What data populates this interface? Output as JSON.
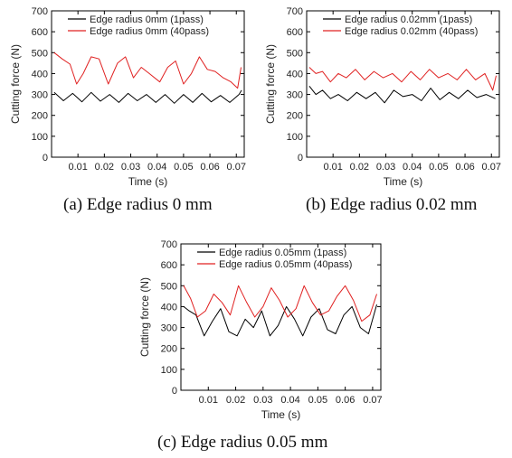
{
  "chart_data": [
    {
      "type": "line",
      "caption": "(a) Edge radius 0 mm",
      "xlabel": "Time (s)",
      "ylabel": "Cutting force (N)",
      "xlim": [
        0,
        0.073
      ],
      "ylim": [
        0,
        700
      ],
      "xticks": [
        "0.01",
        "0.02",
        "0.03",
        "0.04",
        "0.05",
        "0.06",
        "0.07"
      ],
      "yticks": [
        "0",
        "100",
        "200",
        "300",
        "400",
        "500",
        "600",
        "700"
      ],
      "legend_position": "top",
      "series": [
        {
          "name": "Edge radius 0mm (1pass)",
          "color": "#000000",
          "x": [
            0.001,
            0.0045,
            0.008,
            0.0115,
            0.015,
            0.0185,
            0.022,
            0.0255,
            0.029,
            0.0325,
            0.036,
            0.0395,
            0.043,
            0.0465,
            0.05,
            0.0535,
            0.057,
            0.0605,
            0.064,
            0.0675,
            0.071,
            0.072
          ],
          "y": [
            310,
            270,
            305,
            265,
            310,
            268,
            300,
            262,
            305,
            270,
            300,
            262,
            300,
            258,
            300,
            262,
            305,
            265,
            295,
            262,
            300,
            320
          ]
        },
        {
          "name": "Edge radius 0mm (40pass)",
          "color": "#e02020",
          "x": [
            0.001,
            0.004,
            0.007,
            0.0095,
            0.012,
            0.015,
            0.018,
            0.0215,
            0.025,
            0.028,
            0.031,
            0.034,
            0.037,
            0.041,
            0.044,
            0.047,
            0.05,
            0.053,
            0.056,
            0.059,
            0.062,
            0.065,
            0.068,
            0.0705,
            0.0718
          ],
          "y": [
            500,
            470,
            445,
            350,
            400,
            480,
            470,
            350,
            450,
            480,
            380,
            430,
            400,
            360,
            430,
            460,
            350,
            400,
            480,
            420,
            410,
            380,
            360,
            330,
            430
          ]
        }
      ]
    },
    {
      "type": "line",
      "caption": "(b) Edge radius 0.02 mm",
      "xlabel": "Time (s)",
      "ylabel": "Cutting force (N)",
      "xlim": [
        0,
        0.073
      ],
      "ylim": [
        0,
        700
      ],
      "xticks": [
        "0.01",
        "0.02",
        "0.03",
        "0.04",
        "0.05",
        "0.06",
        "0.07"
      ],
      "yticks": [
        "0",
        "100",
        "200",
        "300",
        "400",
        "500",
        "600",
        "700"
      ],
      "legend_position": "top",
      "series": [
        {
          "name": "Edge radius 0.02mm (1pass)",
          "color": "#000000",
          "x": [
            0.001,
            0.0035,
            0.006,
            0.009,
            0.012,
            0.0155,
            0.019,
            0.0225,
            0.026,
            0.0295,
            0.033,
            0.0365,
            0.04,
            0.0435,
            0.047,
            0.0505,
            0.054,
            0.0575,
            0.061,
            0.0645,
            0.068,
            0.0715
          ],
          "y": [
            340,
            300,
            320,
            280,
            300,
            270,
            310,
            280,
            310,
            260,
            320,
            290,
            300,
            270,
            330,
            275,
            310,
            280,
            320,
            285,
            300,
            280
          ]
        },
        {
          "name": "Edge radius 0.02mm (40pass)",
          "color": "#e02020",
          "x": [
            0.001,
            0.0035,
            0.006,
            0.009,
            0.012,
            0.015,
            0.0185,
            0.022,
            0.0255,
            0.029,
            0.0325,
            0.036,
            0.0395,
            0.043,
            0.0465,
            0.05,
            0.0535,
            0.057,
            0.0605,
            0.064,
            0.0675,
            0.0705,
            0.0718
          ],
          "y": [
            430,
            400,
            410,
            360,
            400,
            380,
            420,
            370,
            410,
            380,
            400,
            360,
            410,
            370,
            420,
            380,
            400,
            370,
            420,
            370,
            400,
            320,
            390
          ]
        }
      ]
    },
    {
      "type": "line",
      "caption": "(c) Edge radius 0.05 mm",
      "xlabel": "Time (s)",
      "ylabel": "Cutting force (N)",
      "xlim": [
        0,
        0.073
      ],
      "ylim": [
        0,
        700
      ],
      "xticks": [
        "0.01",
        "0.02",
        "0.03",
        "0.04",
        "0.05",
        "0.06",
        "0.07"
      ],
      "yticks": [
        "0",
        "100",
        "200",
        "300",
        "400",
        "500",
        "600",
        "700"
      ],
      "legend_position": "top",
      "series": [
        {
          "name": "Edge radius 0.05mm (1pass)",
          "color": "#000000",
          "x": [
            0.001,
            0.003,
            0.0055,
            0.0085,
            0.0115,
            0.0145,
            0.0175,
            0.0205,
            0.0235,
            0.0265,
            0.0295,
            0.0325,
            0.0355,
            0.0385,
            0.0415,
            0.0445,
            0.0475,
            0.0505,
            0.0535,
            0.0565,
            0.0595,
            0.0625,
            0.0655,
            0.0685,
            0.0715
          ],
          "y": [
            400,
            380,
            360,
            260,
            330,
            390,
            280,
            260,
            340,
            300,
            380,
            260,
            310,
            400,
            340,
            260,
            350,
            390,
            290,
            270,
            360,
            400,
            300,
            270,
            410
          ]
        },
        {
          "name": "Edge radius 0.05mm (40pass)",
          "color": "#e02020",
          "x": [
            0.001,
            0.0035,
            0.006,
            0.009,
            0.012,
            0.015,
            0.018,
            0.021,
            0.024,
            0.027,
            0.03,
            0.033,
            0.036,
            0.039,
            0.042,
            0.045,
            0.048,
            0.051,
            0.054,
            0.057,
            0.06,
            0.063,
            0.066,
            0.069,
            0.0715
          ],
          "y": [
            500,
            440,
            350,
            380,
            460,
            420,
            360,
            500,
            420,
            350,
            400,
            490,
            430,
            350,
            390,
            500,
            420,
            360,
            380,
            450,
            500,
            430,
            330,
            360,
            460
          ]
        }
      ]
    }
  ]
}
